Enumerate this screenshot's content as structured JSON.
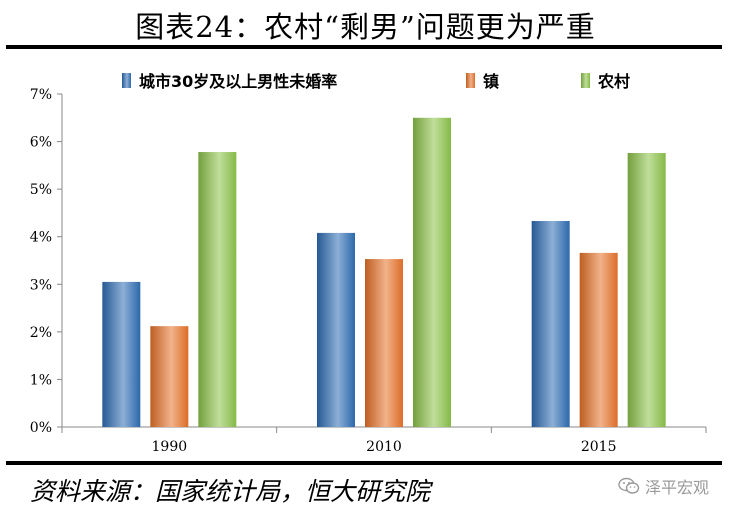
{
  "title": "图表24：农村“剩男”问题更为严重",
  "source": "资料来源：国家统计局，恒大研究院",
  "brand": {
    "name": "泽平宏观",
    "icon": "wechat-icon"
  },
  "colors": {
    "series_blue": "#2e6db4",
    "series_orange": "#e8732a",
    "series_green": "#8cc34a"
  },
  "chart_data": {
    "type": "bar",
    "categories": [
      "1990",
      "2010",
      "2015"
    ],
    "series": [
      {
        "name": "城市30岁及以上男性未婚率",
        "values": [
          3.05,
          4.08,
          4.33
        ],
        "color": "#2e6db4"
      },
      {
        "name": "镇",
        "values": [
          2.12,
          3.53,
          3.66
        ],
        "color": "#e8732a"
      },
      {
        "name": "农村",
        "values": [
          5.78,
          6.5,
          5.76
        ],
        "color": "#8cc34a"
      }
    ],
    "ylim": [
      0,
      7
    ],
    "yticks": [
      "0%",
      "1%",
      "2%",
      "3%",
      "4%",
      "5%",
      "6%",
      "7%"
    ],
    "legend_position": "top",
    "grid": false
  }
}
